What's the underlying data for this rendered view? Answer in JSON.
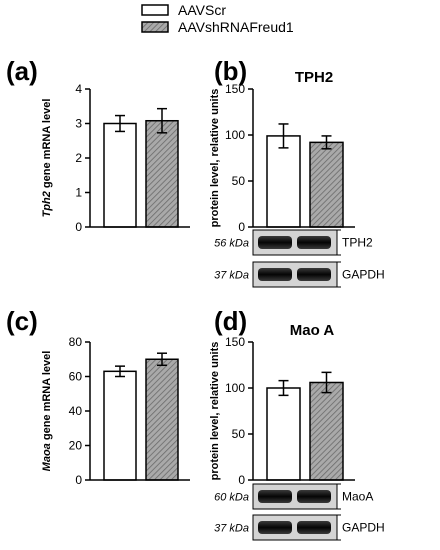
{
  "legend": [
    {
      "name": "AAVScr",
      "color": "#ffffff"
    },
    {
      "name": "AAVshRNAFreud1",
      "color": "#a9a9a9",
      "pattern": "diagonal-hatch"
    }
  ],
  "chart_data": [
    {
      "type": "bar",
      "panel": "(a)",
      "title": "",
      "ylabel_gene": "Tph2",
      "ylabel_rest": " gene mRNA level",
      "categories": [
        "AAVScr",
        "AAVshRNAFreud1"
      ],
      "values": [
        3.0,
        3.08
      ],
      "errors": [
        0.23,
        0.35
      ],
      "ylim": [
        0,
        4
      ],
      "yticks": [
        0,
        1,
        2,
        3,
        4
      ],
      "ytick_labels": [
        "0",
        "1",
        "2",
        "3",
        "4"
      ],
      "blots": []
    },
    {
      "type": "bar",
      "panel": "(b)",
      "title": "TPH2",
      "ylabel_gene": "",
      "ylabel_rest": "protein level, relative units",
      "categories": [
        "AAVScr",
        "AAVshRNAFreud1"
      ],
      "values": [
        99,
        92
      ],
      "errors": [
        13,
        7
      ],
      "ylim": [
        0,
        150
      ],
      "yticks": [
        0,
        50,
        100,
        150
      ],
      "ytick_labels": [
        "0",
        "50",
        "100",
        "150"
      ],
      "blots": [
        {
          "kda": "56 kDa",
          "name": "TPH2"
        },
        {
          "kda": "37 kDa",
          "name": "GAPDH"
        }
      ]
    },
    {
      "type": "bar",
      "panel": "(c)",
      "title": "",
      "ylabel_gene": "Maoa",
      "ylabel_rest": " gene mRNA level",
      "categories": [
        "AAVScr",
        "AAVshRNAFreud1"
      ],
      "values": [
        63,
        70
      ],
      "errors": [
        3,
        3.5
      ],
      "ylim": [
        0,
        80
      ],
      "yticks": [
        0,
        20,
        40,
        60,
        80
      ],
      "ytick_labels": [
        "0",
        "20",
        "40",
        "60",
        "80"
      ],
      "blots": []
    },
    {
      "type": "bar",
      "panel": "(d)",
      "title": "Mao A",
      "ylabel_gene": "",
      "ylabel_rest": "protein level, relative units",
      "categories": [
        "AAVScr",
        "AAVshRNAFreud1"
      ],
      "values": [
        100,
        106
      ],
      "errors": [
        8,
        11
      ],
      "ylim": [
        0,
        150
      ],
      "yticks": [
        0,
        50,
        100,
        150
      ],
      "ytick_labels": [
        "0",
        "50",
        "100",
        "150"
      ],
      "blots": [
        {
          "kda": "60 kDa",
          "name": "MaoA"
        },
        {
          "kda": "37 kDa",
          "name": "GAPDH"
        }
      ]
    }
  ]
}
